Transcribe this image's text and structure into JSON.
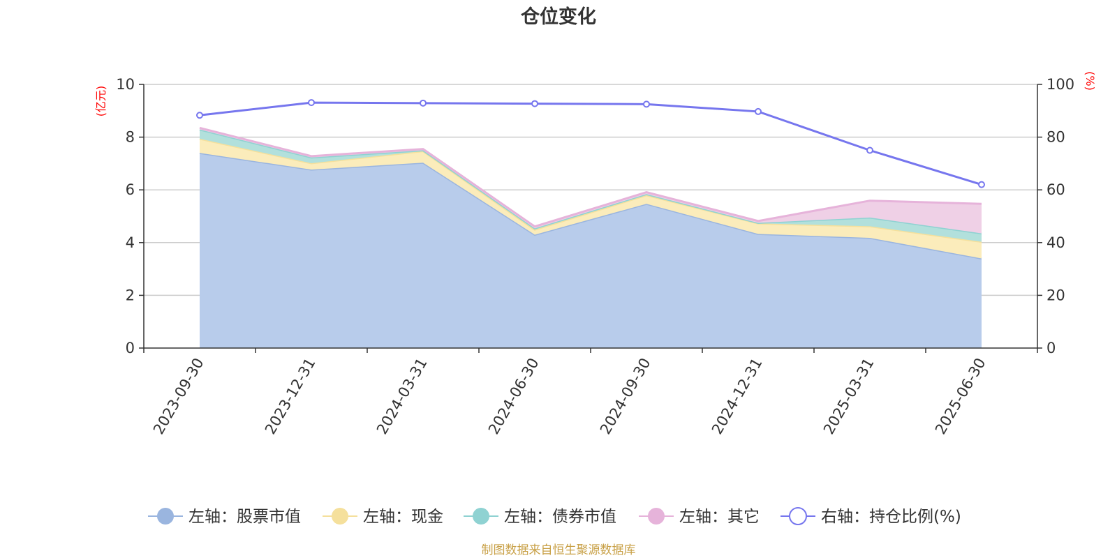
{
  "chart_data": {
    "type": "area",
    "title": "仓位变化",
    "categories": [
      "2023-09-30",
      "2023-12-31",
      "2024-03-31",
      "2024-06-30",
      "2024-09-30",
      "2024-12-31",
      "2025-03-31",
      "2025-06-30"
    ],
    "left_axis": {
      "unit": "(亿元)",
      "range": [
        0,
        10
      ],
      "ticks": [
        "0",
        "2",
        "4",
        "6",
        "8",
        "10"
      ]
    },
    "right_axis": {
      "unit": "(%)",
      "range": [
        0,
        100
      ],
      "ticks": [
        "0",
        "20",
        "40",
        "60",
        "80",
        "100"
      ]
    },
    "stacked": true,
    "series": [
      {
        "name": "左轴：股票市值",
        "axis": "left",
        "color": "#9ab5df",
        "fill": "#b8cceb",
        "values": [
          7.4,
          6.77,
          7.03,
          4.3,
          5.47,
          4.33,
          4.18,
          3.4
        ]
      },
      {
        "name": "左轴：现金",
        "axis": "left",
        "color": "#f5e09c",
        "fill": "#fbecbb",
        "values": [
          0.54,
          0.24,
          0.44,
          0.19,
          0.33,
          0.4,
          0.44,
          0.63
        ]
      },
      {
        "name": "左轴：债券市值",
        "axis": "left",
        "color": "#8fd2d2",
        "fill": "#b2e0dc",
        "values": [
          0.35,
          0.22,
          0.03,
          0.05,
          0.04,
          0.02,
          0.33,
          0.32
        ]
      },
      {
        "name": "左轴：其它",
        "axis": "left",
        "color": "#e6b3da",
        "fill": "#efd0e6",
        "values": [
          0.06,
          0.05,
          0.05,
          0.07,
          0.07,
          0.07,
          0.64,
          1.12
        ]
      },
      {
        "name": "右轴：持仓比例(%)",
        "axis": "right",
        "type": "line",
        "color": "#7676ee",
        "values": [
          88.3,
          93.1,
          92.9,
          92.7,
          92.5,
          89.7,
          75.0,
          62.0
        ]
      }
    ],
    "grid": true,
    "legend_position": "bottom"
  },
  "footer": {
    "source": "制图数据来自恒生聚源数据库"
  }
}
